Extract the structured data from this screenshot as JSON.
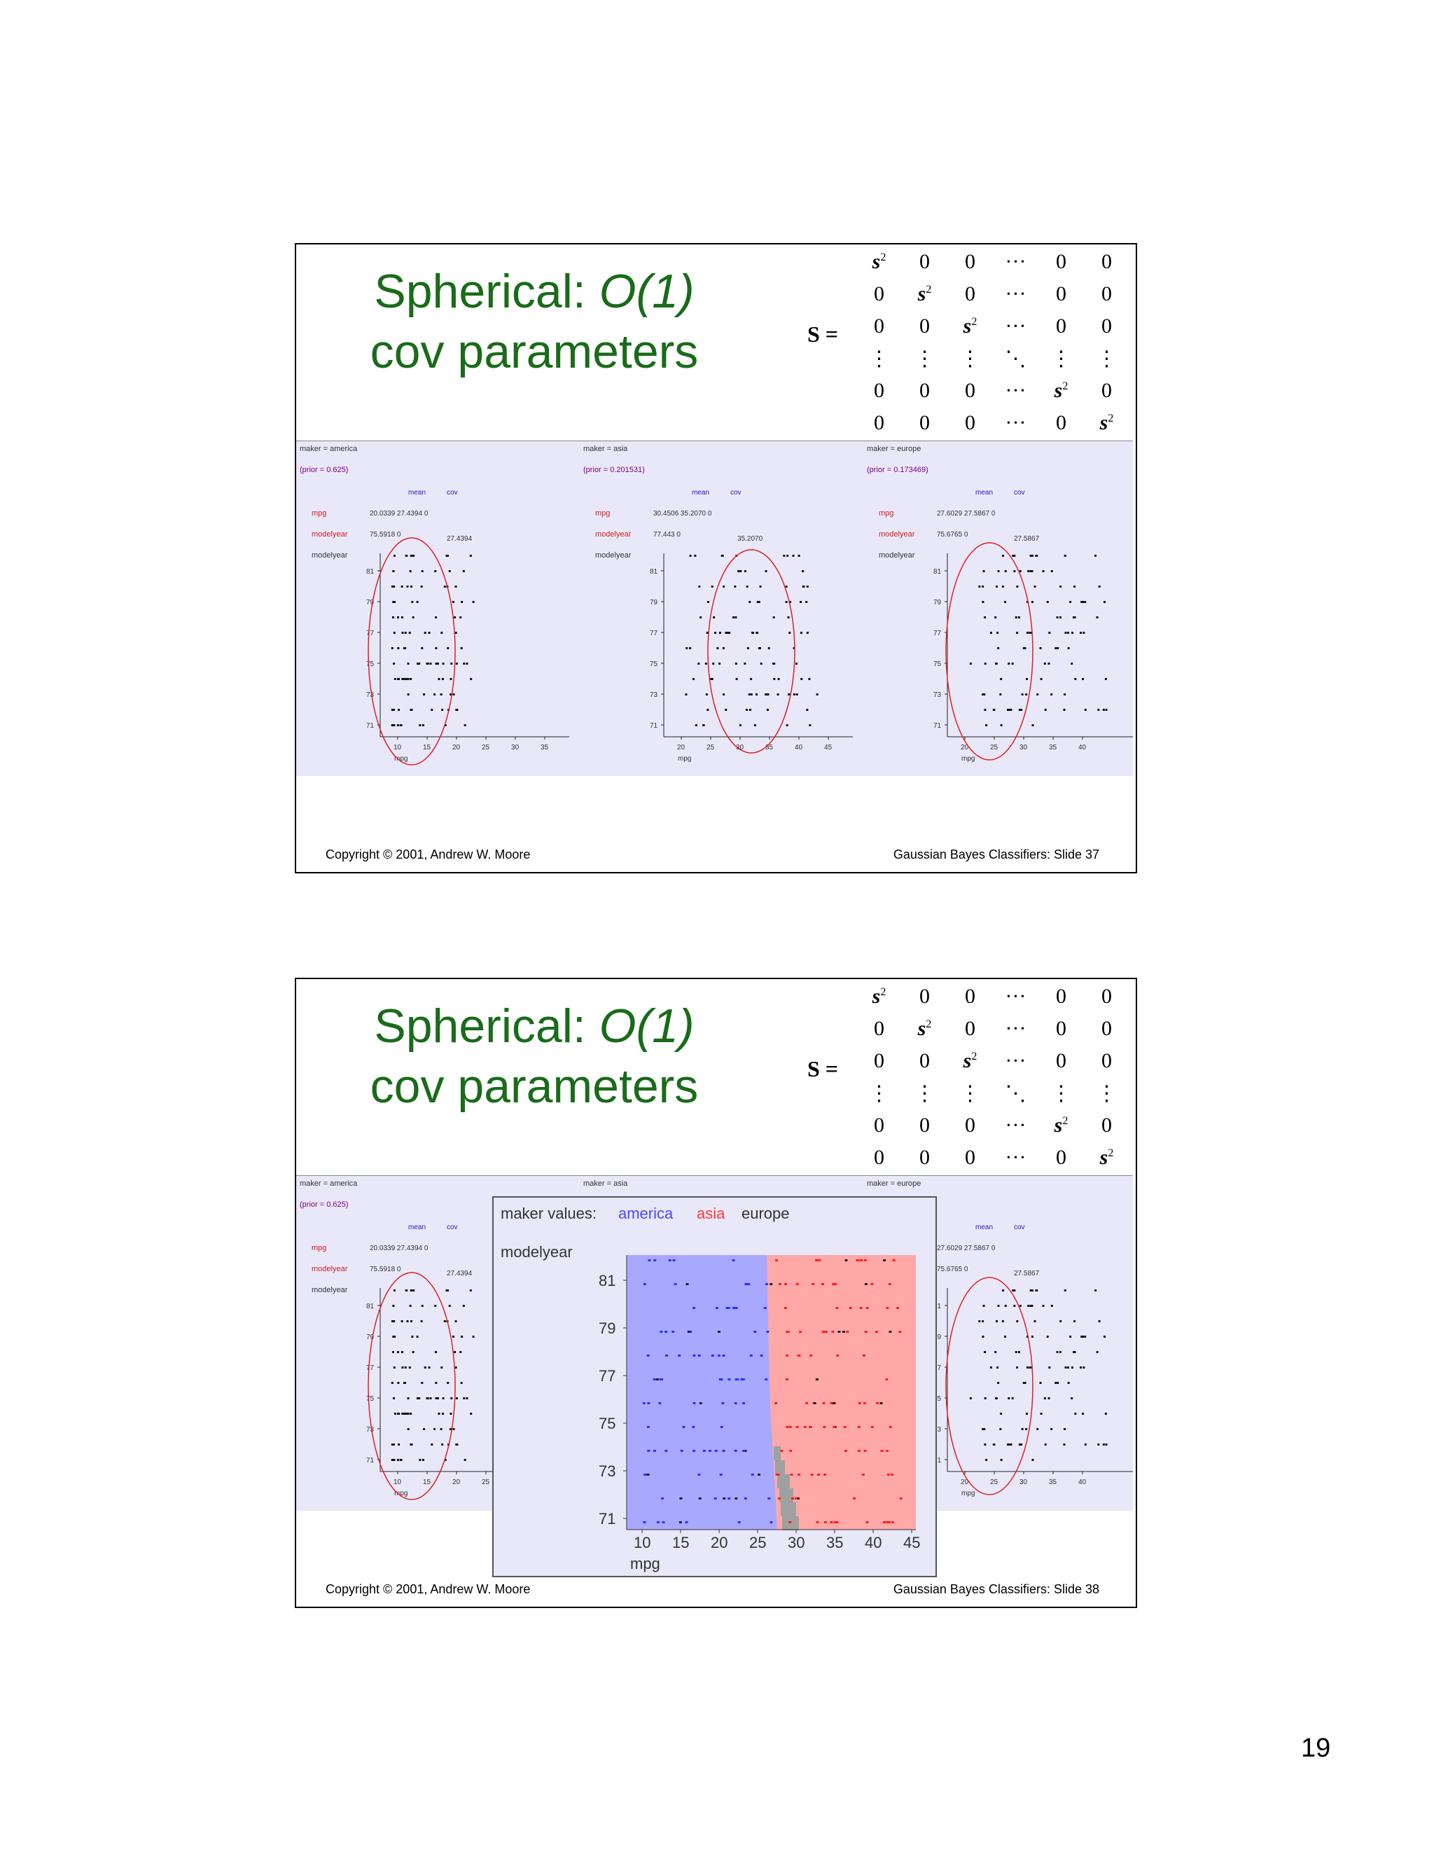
{
  "slides": [
    {
      "title_line1": "Spherical: ",
      "title_italic": "O(1)",
      "title_line2": "cov parameters",
      "matrix_label": "S =",
      "footer_left": "Copyright © 2001, Andrew W. Moore",
      "footer_right": "Gaussian Bayes Classifiers: Slide 37"
    },
    {
      "title_line1": "Spherical: ",
      "title_italic": "O(1)",
      "title_line2": "cov parameters",
      "matrix_label": "S =",
      "footer_left": "Copyright © 2001, Andrew W. Moore",
      "footer_right": "Gaussian Bayes Classifiers: Slide 38"
    }
  ],
  "matrix": {
    "sigma": "s",
    "sup": "2",
    "dots_h": "···",
    "dots_v": "⋮",
    "dots_d": "⋱",
    "zero": "0"
  },
  "panels": [
    {
      "maker": "maker = america",
      "prior": "(prior = 0.625)",
      "mean_label": "mean",
      "cov_label": "cov",
      "row1": "mpg",
      "row1_vals": "20.0339  27.4394  0",
      "row2": "modelyear",
      "row2_vals": "75.5918  0",
      "row2_cov": "27.4394",
      "ylabel": "modelyear",
      "xlabel": "mpg",
      "xticks": [
        "10",
        "15",
        "20",
        "25",
        "30",
        "35"
      ],
      "yticks": [
        "81",
        "79",
        "77",
        "75",
        "73",
        "71"
      ]
    },
    {
      "maker": "maker = asia",
      "prior": "(prior = 0.201531)",
      "mean_label": "mean",
      "cov_label": "cov",
      "row1": "mpg",
      "row1_vals": "30.4506  35.2070  0",
      "row2": "modelyear",
      "row2_vals": "77.443  0",
      "row2_cov": "35.2070",
      "ylabel": "modelyear",
      "xlabel": "mpg",
      "xticks": [
        "20",
        "25",
        "30",
        "35",
        "40",
        "45"
      ],
      "yticks": [
        "81",
        "79",
        "77",
        "75",
        "73",
        "71"
      ]
    },
    {
      "maker": "maker = europe",
      "prior": "(prior = 0.173469)",
      "mean_label": "mean",
      "cov_label": "cov",
      "row1": "mpg",
      "row1_vals": "27.6029  27.5867  0",
      "row2": "modelyear",
      "row2_vals": "75.6765  0",
      "row2_cov": "27.5867",
      "ylabel": "modelyear",
      "xlabel": "mpg",
      "xticks": [
        "20",
        "25",
        "30",
        "35",
        "40"
      ],
      "yticks": [
        "81",
        "79",
        "77",
        "75",
        "73",
        "71"
      ]
    }
  ],
  "overlay": {
    "legend_prefix": "maker values:",
    "legend_items": [
      "america",
      "asia",
      "europe"
    ],
    "legend_colors": [
      "#4a4aff",
      "#ff3a3a",
      "#333333"
    ],
    "ylabel": "modelyear",
    "xlabel": "mpg",
    "xticks": [
      "10",
      "15",
      "20",
      "25",
      "30",
      "35",
      "40",
      "45"
    ],
    "yticks": [
      "81",
      "79",
      "77",
      "75",
      "73",
      "71"
    ]
  },
  "chart_data": {
    "type": "scatter",
    "xlabel": "mpg",
    "ylabel": "modelyear",
    "xlim": [
      10,
      45
    ],
    "ylim": [
      70,
      82
    ],
    "series": [
      {
        "name": "america",
        "color": "#3030ff"
      },
      {
        "name": "asia",
        "color": "#ff2020"
      },
      {
        "name": "europe",
        "color": "#222222"
      }
    ],
    "regions": [
      {
        "name": "america",
        "color": "#a8a8ff"
      },
      {
        "name": "asia",
        "color": "#ffa8a8"
      },
      {
        "name": "europe",
        "color": "#a0a0a0"
      }
    ]
  },
  "page_number": "19"
}
